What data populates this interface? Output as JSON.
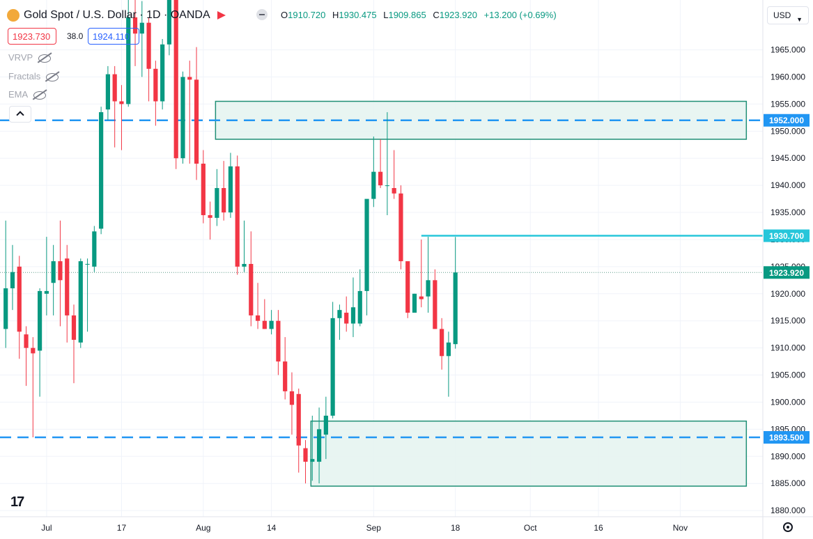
{
  "header": {
    "symbol_title": "Gold Spot / U.S. Dollar · 1D · OANDA",
    "open_label": "O",
    "open": "1910.720",
    "high_label": "H",
    "high": "1930.475",
    "low_label": "L",
    "low": "1909.865",
    "close_label": "C",
    "close": "1923.920",
    "change": "+13.200 (+0.69%)"
  },
  "trade": {
    "sell_price": "1923.730",
    "spread": "38.0",
    "buy_price": "1924.110"
  },
  "indicators": [
    "VRVP",
    "Fractals",
    "EMA"
  ],
  "currency_button": "USD",
  "colors": {
    "up": "#089981",
    "down": "#f23645",
    "level": "#2196f3",
    "zone_fill": "#e6f4f1",
    "zone_border": "#1f8f75",
    "resistance": "#26c6da"
  },
  "chart_data": {
    "type": "candlestick",
    "ylim": [
      1878,
      1972
    ],
    "yticks": [
      1965,
      1960,
      1955,
      1950,
      1945,
      1940,
      1935,
      1930,
      1925,
      1920,
      1915,
      1910,
      1905,
      1900,
      1895,
      1890,
      1885,
      1880
    ],
    "ytick_labels": [
      "1965.000",
      "1960.000",
      "1955.000",
      "1950.000",
      "1945.000",
      "1940.000",
      "1935.000",
      "1930.000",
      "1925.000",
      "1920.000",
      "1915.000",
      "1910.000",
      "1905.000",
      "1900.000",
      "1895.000",
      "1890.000",
      "1885.000",
      "1880.000"
    ],
    "xlim": [
      -0.5,
      108.5
    ],
    "xticks": [
      {
        "i": 6,
        "label": "Jul"
      },
      {
        "i": 17,
        "label": "17"
      },
      {
        "i": 29,
        "label": "Aug"
      },
      {
        "i": 39,
        "label": "14"
      },
      {
        "i": 54,
        "label": "Sep"
      },
      {
        "i": 66,
        "label": "18"
      },
      {
        "i": 77,
        "label": "Oct"
      },
      {
        "i": 87,
        "label": "16"
      },
      {
        "i": 99,
        "label": "Nov"
      }
    ],
    "candles": [
      {
        "i": 0,
        "o": 1913.5,
        "h": 1933.5,
        "l": 1910.0,
        "c": 1921.0
      },
      {
        "i": 1,
        "o": 1921.0,
        "h": 1929.0,
        "l": 1917.0,
        "c": 1924.0
      },
      {
        "i": 2,
        "o": 1925.0,
        "h": 1927.0,
        "l": 1908.0,
        "c": 1913.0
      },
      {
        "i": 3,
        "o": 1912.5,
        "h": 1914.0,
        "l": 1903.0,
        "c": 1910.0
      },
      {
        "i": 4,
        "o": 1910.0,
        "h": 1912.0,
        "l": 1893.5,
        "c": 1909.0
      },
      {
        "i": 5,
        "o": 1909.5,
        "h": 1921.0,
        "l": 1901.0,
        "c": 1920.5
      },
      {
        "i": 6,
        "o": 1920.0,
        "h": 1930.5,
        "l": 1916.0,
        "c": 1920.5
      },
      {
        "i": 7,
        "o": 1922.0,
        "h": 1929.0,
        "l": 1916.0,
        "c": 1926.0
      },
      {
        "i": 8,
        "o": 1926.0,
        "h": 1933.5,
        "l": 1914.0,
        "c": 1922.5
      },
      {
        "i": 9,
        "o": 1926.5,
        "h": 1929.0,
        "l": 1911.0,
        "c": 1916.0
      },
      {
        "i": 10,
        "o": 1916.0,
        "h": 1918.0,
        "l": 1903.5,
        "c": 1911.5
      },
      {
        "i": 11,
        "o": 1911.0,
        "h": 1926.5,
        "l": 1910.0,
        "c": 1926.0
      },
      {
        "i": 12,
        "o": 1925.5,
        "h": 1926.5,
        "l": 1913.0,
        "c": 1925.5
      },
      {
        "i": 13,
        "o": 1925.0,
        "h": 1932.5,
        "l": 1924.0,
        "c": 1931.5
      },
      {
        "i": 14,
        "o": 1932.0,
        "h": 1954.5,
        "l": 1931.0,
        "c": 1953.5
      },
      {
        "i": 15,
        "o": 1954.0,
        "h": 1962.0,
        "l": 1952.0,
        "c": 1960.5
      },
      {
        "i": 16,
        "o": 1960.5,
        "h": 1962.0,
        "l": 1947.0,
        "c": 1955.5
      },
      {
        "i": 17,
        "o": 1955.5,
        "h": 1958.5,
        "l": 1946.5,
        "c": 1955.0
      },
      {
        "i": 18,
        "o": 1955.0,
        "h": 1975.0,
        "l": 1954.5,
        "c": 1971.0
      },
      {
        "i": 19,
        "o": 1971.0,
        "h": 1975.0,
        "l": 1962.0,
        "c": 1968.0
      },
      {
        "i": 20,
        "o": 1968.0,
        "h": 1974.0,
        "l": 1960.0,
        "c": 1970.0
      },
      {
        "i": 21,
        "o": 1970.0,
        "h": 1971.0,
        "l": 1955.5,
        "c": 1961.5
      },
      {
        "i": 22,
        "o": 1961.5,
        "h": 1963.0,
        "l": 1951.0,
        "c": 1955.5
      },
      {
        "i": 23,
        "o": 1955.5,
        "h": 1967.0,
        "l": 1954.0,
        "c": 1966.0
      },
      {
        "i": 24,
        "o": 1966.0,
        "h": 1976.0,
        "l": 1964.0,
        "c": 1975.0
      },
      {
        "i": 25,
        "o": 1975.0,
        "h": 1976.0,
        "l": 1943.0,
        "c": 1945.0
      },
      {
        "i": 26,
        "o": 1945.0,
        "h": 1961.0,
        "l": 1944.0,
        "c": 1960.0
      },
      {
        "i": 27,
        "o": 1960.0,
        "h": 1963.0,
        "l": 1944.0,
        "c": 1959.5
      },
      {
        "i": 28,
        "o": 1959.5,
        "h": 1965.5,
        "l": 1941.0,
        "c": 1944.0
      },
      {
        "i": 29,
        "o": 1944.0,
        "h": 1946.5,
        "l": 1933.0,
        "c": 1934.5
      },
      {
        "i": 30,
        "o": 1934.5,
        "h": 1937.0,
        "l": 1930.0,
        "c": 1934.0
      },
      {
        "i": 31,
        "o": 1934.0,
        "h": 1943.0,
        "l": 1932.5,
        "c": 1939.5
      },
      {
        "i": 32,
        "o": 1939.5,
        "h": 1944.5,
        "l": 1933.5,
        "c": 1935.0
      },
      {
        "i": 33,
        "o": 1935.0,
        "h": 1946.0,
        "l": 1934.0,
        "c": 1943.5
      },
      {
        "i": 34,
        "o": 1943.5,
        "h": 1945.5,
        "l": 1923.5,
        "c": 1925.0
      },
      {
        "i": 35,
        "o": 1925.0,
        "h": 1933.5,
        "l": 1924.0,
        "c": 1925.5
      },
      {
        "i": 36,
        "o": 1925.5,
        "h": 1931.5,
        "l": 1914.0,
        "c": 1916.0
      },
      {
        "i": 37,
        "o": 1916.0,
        "h": 1922.0,
        "l": 1913.5,
        "c": 1915.0
      },
      {
        "i": 38,
        "o": 1915.0,
        "h": 1919.0,
        "l": 1913.5,
        "c": 1913.5
      },
      {
        "i": 39,
        "o": 1913.5,
        "h": 1917.0,
        "l": 1912.5,
        "c": 1915.0
      },
      {
        "i": 40,
        "o": 1915.0,
        "h": 1917.0,
        "l": 1905.0,
        "c": 1907.5
      },
      {
        "i": 41,
        "o": 1907.5,
        "h": 1912.0,
        "l": 1900.5,
        "c": 1902.0
      },
      {
        "i": 42,
        "o": 1902.0,
        "h": 1905.5,
        "l": 1894.0,
        "c": 1899.5
      },
      {
        "i": 43,
        "o": 1901.5,
        "h": 1902.5,
        "l": 1887.0,
        "c": 1892.0
      },
      {
        "i": 44,
        "o": 1891.5,
        "h": 1893.0,
        "l": 1885.0,
        "c": 1889.0
      },
      {
        "i": 45,
        "o": 1889.0,
        "h": 1897.5,
        "l": 1885.5,
        "c": 1889.5
      },
      {
        "i": 46,
        "o": 1889.0,
        "h": 1899.0,
        "l": 1885.0,
        "c": 1895.0
      },
      {
        "i": 47,
        "o": 1894.0,
        "h": 1901.0,
        "l": 1889.5,
        "c": 1897.5
      },
      {
        "i": 48,
        "o": 1897.5,
        "h": 1918.5,
        "l": 1897.0,
        "c": 1915.5
      },
      {
        "i": 49,
        "o": 1915.5,
        "h": 1918.0,
        "l": 1911.5,
        "c": 1917.0
      },
      {
        "i": 50,
        "o": 1916.5,
        "h": 1919.5,
        "l": 1913.0,
        "c": 1914.5
      },
      {
        "i": 51,
        "o": 1914.5,
        "h": 1923.0,
        "l": 1912.0,
        "c": 1917.5
      },
      {
        "i": 52,
        "o": 1914.5,
        "h": 1924.5,
        "l": 1914.0,
        "c": 1920.5
      },
      {
        "i": 53,
        "o": 1920.5,
        "h": 1937.0,
        "l": 1916.0,
        "c": 1937.5
      },
      {
        "i": 54,
        "o": 1937.5,
        "h": 1949.0,
        "l": 1936.0,
        "c": 1942.5
      },
      {
        "i": 55,
        "o": 1942.5,
        "h": 1948.5,
        "l": 1939.5,
        "c": 1940.0
      },
      {
        "i": 56,
        "o": 1940.0,
        "h": 1953.5,
        "l": 1934.5,
        "c": 1940.0
      },
      {
        "i": 57,
        "o": 1939.5,
        "h": 1946.5,
        "l": 1937.5,
        "c": 1938.5
      },
      {
        "i": 58,
        "o": 1938.5,
        "h": 1940.0,
        "l": 1924.5,
        "c": 1926.0
      },
      {
        "i": 59,
        "o": 1926.0,
        "h": 1925.5,
        "l": 1915.5,
        "c": 1916.5
      },
      {
        "i": 60,
        "o": 1916.5,
        "h": 1920.0,
        "l": 1916.5,
        "c": 1920.0
      },
      {
        "i": 61,
        "o": 1919.5,
        "h": 1930.0,
        "l": 1917.5,
        "c": 1919.0
      },
      {
        "i": 62,
        "o": 1919.5,
        "h": 1930.5,
        "l": 1916.5,
        "c": 1922.5
      },
      {
        "i": 63,
        "o": 1922.5,
        "h": 1924.5,
        "l": 1913.5,
        "c": 1913.5
      },
      {
        "i": 64,
        "o": 1913.5,
        "h": 1915.5,
        "l": 1906.0,
        "c": 1908.5
      },
      {
        "i": 65,
        "o": 1908.5,
        "h": 1913.0,
        "l": 1901.0,
        "c": 1911.0
      },
      {
        "i": 66,
        "o": 1910.7,
        "h": 1930.475,
        "l": 1909.865,
        "c": 1923.92
      }
    ],
    "zones": [
      {
        "from_i": 31,
        "to_i": 108.5,
        "top": 1955.5,
        "bottom": 1948.5
      },
      {
        "from_i": 45,
        "to_i": 108.5,
        "top": 1896.5,
        "bottom": 1884.5
      }
    ],
    "levels": [
      {
        "price": 1952.0,
        "label": "1952.000",
        "style": "dashed"
      },
      {
        "price": 1893.5,
        "label": "1893.500",
        "style": "dashed"
      },
      {
        "price": 1930.7,
        "label": "1930.700",
        "style": "solid",
        "from_i": 61
      },
      {
        "price": 1923.92,
        "label": "1923.920",
        "style": "dotted"
      }
    ]
  }
}
